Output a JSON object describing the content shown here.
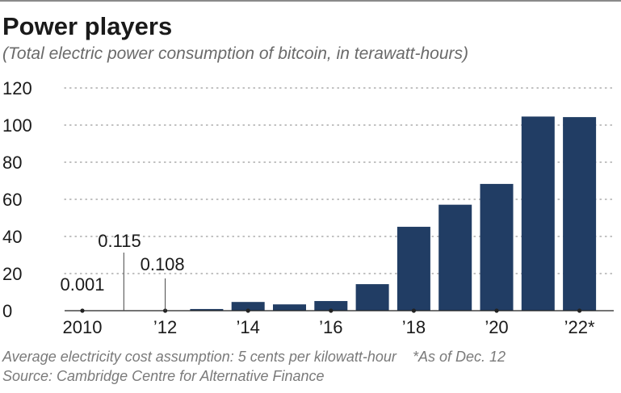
{
  "header": {
    "title": "Power players",
    "subtitle": "(Total electric power consumption of bitcoin, in terawatt-hours)"
  },
  "footer": {
    "assumption": "Average electricity cost assumption: 5 cents per kilowatt-hour",
    "note": "*As of Dec. 12",
    "source": "Source: Cambridge Centre for Alternative Finance"
  },
  "colors": {
    "bar": "#213d64",
    "grid": "#9a9a9a",
    "axis": "#222222",
    "text": "#1a1a1a"
  },
  "chart_data": {
    "type": "bar",
    "title": "Power players",
    "subtitle": "(Total electric power consumption of bitcoin, in terawatt-hours)",
    "xlabel": "",
    "ylabel": "",
    "ylim": [
      0,
      120
    ],
    "yticks": [
      0,
      20,
      40,
      60,
      80,
      100,
      120
    ],
    "grid": true,
    "categories": [
      "2010",
      "2011",
      "2012",
      "2013",
      "2014",
      "2015",
      "2016",
      "2017",
      "2018",
      "2019",
      "2020",
      "2021",
      "2022"
    ],
    "values": [
      0.001,
      0.115,
      0.108,
      0.9,
      4.7,
      3.4,
      5.2,
      14.3,
      45.2,
      57.1,
      68.3,
      104.6,
      104.3
    ],
    "xtick_labels": [
      "2010",
      "",
      "’12",
      "",
      "’14",
      "",
      "’16",
      "",
      "’18",
      "",
      "’20",
      "",
      "’22*"
    ],
    "annotations": [
      {
        "category": "2010",
        "text": "0.001"
      },
      {
        "category": "2011",
        "text": "0.115"
      },
      {
        "category": "2012",
        "text": "0.108"
      }
    ]
  }
}
